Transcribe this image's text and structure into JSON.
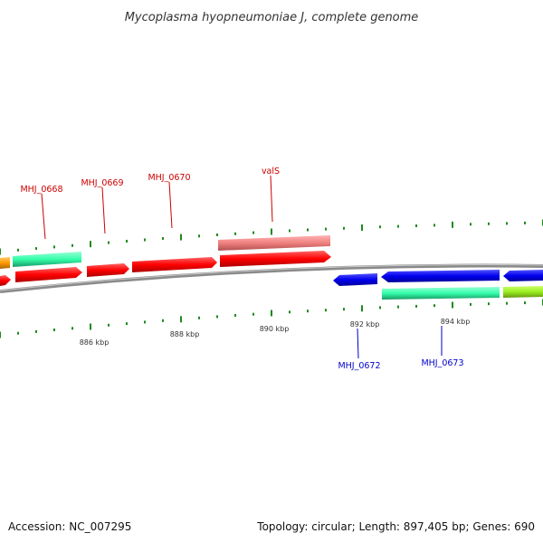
{
  "title": "Mycoplasma hyopneumoniae J, complete genome",
  "footer": {
    "accession": "Accession: NC_007295",
    "summary": "Topology: circular; Length: 897,405 bp; Genes: 690"
  },
  "colors": {
    "backbone": "#8a8a8a",
    "tick": "#1f8a1f",
    "forward_label": "#cc0000",
    "reverse_label": "#0000cc",
    "cds_forward": "#ff0000",
    "cds_reverse": "#0000ee",
    "rna": "#f08080",
    "teal": "#33ffaa",
    "lime": "#99ee22",
    "orange": "#ff9900"
  },
  "kbp_labels": [
    "886 kbp",
    "888 kbp",
    "890 kbp",
    "892 kbp",
    "894 kbp"
  ],
  "gene_labels": {
    "forward": [
      "MHJ_0668",
      "MHJ_0669",
      "MHJ_0670",
      "valS"
    ],
    "reverse": [
      "MHJ_0672",
      "MHJ_0673"
    ]
  }
}
